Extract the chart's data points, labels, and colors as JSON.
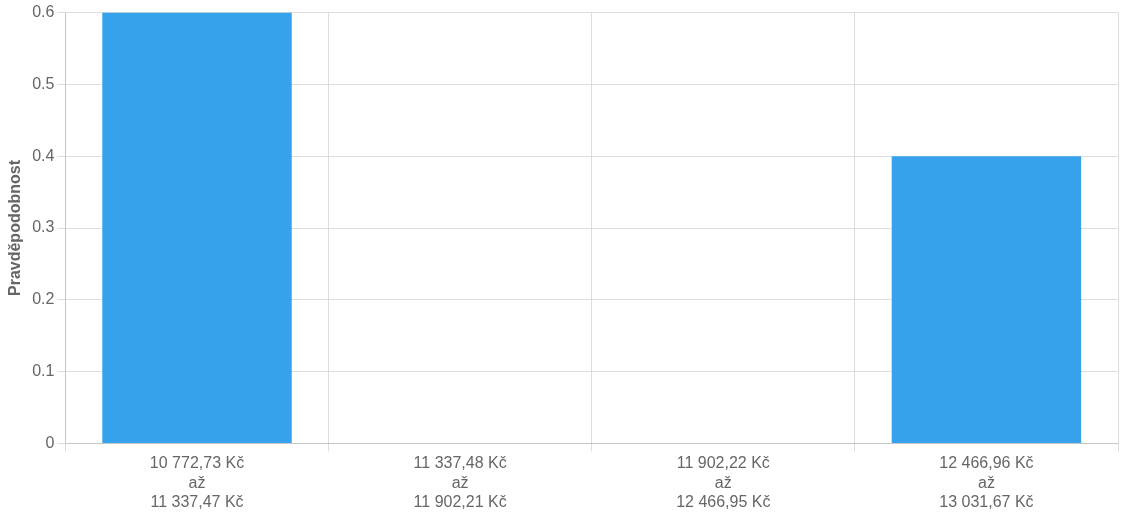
{
  "chart_data": {
    "type": "bar",
    "ylabel": "Pravděpodobnost",
    "categories": [
      "10 772,73 Kč\naž\n11 337,47 Kč",
      "11 337,48 Kč\naž\n11 902,21 Kč",
      "11 902,22 Kč\naž\n12 466,95 Kč",
      "12 466,96 Kč\naž\n13 031,67 Kč"
    ],
    "values": [
      0.6,
      0,
      0,
      0.4
    ],
    "color": "#36a2eb",
    "ylim": [
      0,
      0.6
    ],
    "yticks": [
      0,
      0.1,
      0.2,
      0.3,
      0.4,
      0.5,
      0.6
    ],
    "grid": true,
    "legend": false
  }
}
